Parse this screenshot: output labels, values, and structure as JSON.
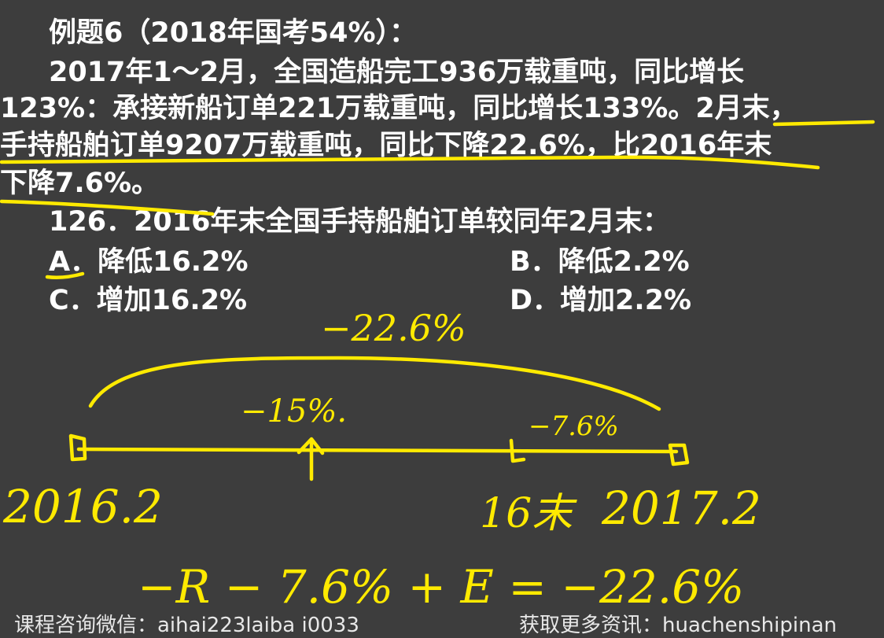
{
  "problem": {
    "title": "例题6（2018年国考54%）：",
    "text_lines": [
      "2017年1～2月，全国造船完工936万载重吨，同比增长",
      "123%：承接新船订单221万载重吨，同比增长133%。2月末，",
      "手持船舶订单9207万载重吨，同比下降22.6%，比2016年末",
      "下降7.6%。"
    ],
    "question": "126．2016年末全国手持船舶订单较同年2月末：",
    "options": {
      "a": "A．降低16.2%",
      "b": "B．降低2.2%",
      "c": "C．增加16.2%",
      "d": "D．增加2.2%"
    }
  },
  "annotations": {
    "top_rate": "−22.6%",
    "left_rate": "−15%.",
    "right_rate": "−7.6%",
    "label_left": "2016.2",
    "label_mid": "16末",
    "label_right": "2017.2",
    "equation": "−R − 7.6% + E = −22.6%"
  },
  "footer": {
    "left": "课程咨询微信：aihai223laiba i0033",
    "right": "获取更多资讯：huachenshipinan"
  },
  "colors": {
    "background": "#3d3d3d",
    "text": "#ffffff",
    "ink": "#ffea00"
  }
}
